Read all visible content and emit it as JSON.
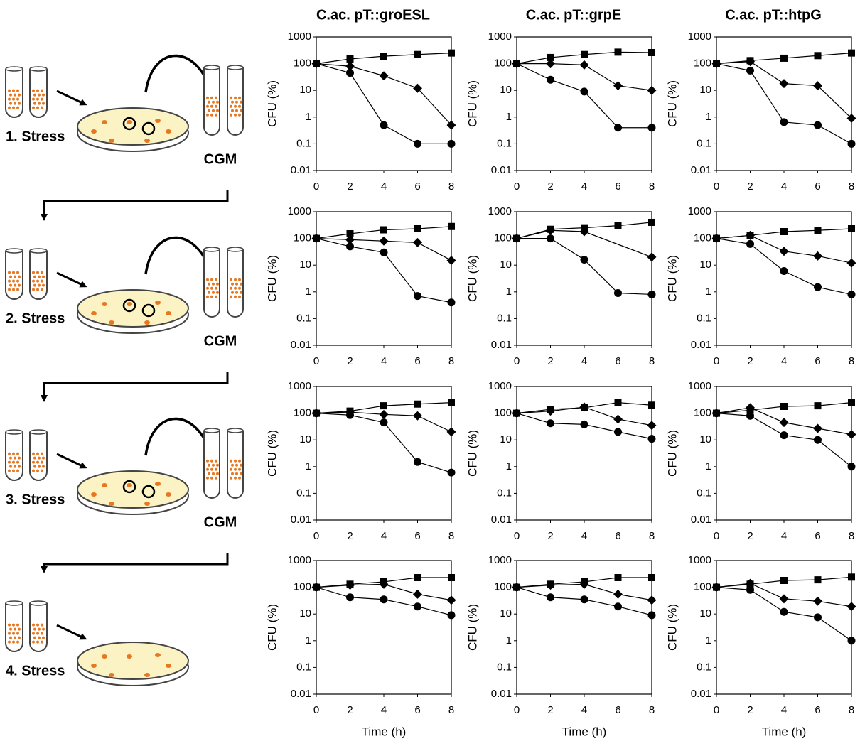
{
  "diagram": {
    "steps": [
      "1. Stress",
      "2. Stress",
      "3. Stress",
      "4. Stress"
    ],
    "medium": [
      "CGM",
      "CGM",
      "CGM"
    ]
  },
  "chart_data": [
    {
      "type": "line",
      "title": "C.ac. pT::groESL",
      "ylabel": "CFU (%)",
      "x": [
        0,
        2,
        4,
        6,
        8
      ],
      "xlim": [
        0,
        8
      ],
      "xticks": [
        0,
        2,
        4,
        6,
        8
      ],
      "ylim": [
        0.01,
        1000
      ],
      "yticks": [
        0.01,
        0.1,
        1,
        10,
        100,
        1000
      ],
      "log_y": true,
      "series": [
        {
          "marker": "square",
          "color": "#000000",
          "values": [
            100,
            150,
            190,
            220,
            250
          ]
        },
        {
          "marker": "diamond",
          "color": "#000000",
          "values": [
            100,
            80,
            35,
            12,
            0.5
          ]
        },
        {
          "marker": "circle",
          "color": "#000000",
          "values": [
            100,
            45,
            0.5,
            0.1,
            0.1
          ]
        }
      ]
    },
    {
      "type": "line",
      "title": "C.ac. pT::grpE",
      "ylabel": "CFU (%)",
      "x": [
        0,
        2,
        4,
        6,
        8
      ],
      "xlim": [
        0,
        8
      ],
      "xticks": [
        0,
        2,
        4,
        6,
        8
      ],
      "ylim": [
        0.01,
        1000
      ],
      "yticks": [
        0.01,
        0.1,
        1,
        10,
        100,
        1000
      ],
      "log_y": true,
      "series": [
        {
          "marker": "square",
          "color": "#000000",
          "values": [
            100,
            170,
            220,
            270,
            260
          ]
        },
        {
          "marker": "diamond",
          "color": "#000000",
          "values": [
            100,
            100,
            90,
            15,
            10
          ]
        },
        {
          "marker": "circle",
          "color": "#000000",
          "values": [
            100,
            25,
            9,
            0.4,
            0.4
          ]
        }
      ]
    },
    {
      "type": "line",
      "title": "C.ac. pT::htpG",
      "ylabel": "CFU (%)",
      "x": [
        0,
        2,
        4,
        6,
        8
      ],
      "xlim": [
        0,
        8
      ],
      "xticks": [
        0,
        2,
        4,
        6,
        8
      ],
      "ylim": [
        0.01,
        1000
      ],
      "yticks": [
        0.01,
        0.1,
        1,
        10,
        100,
        1000
      ],
      "log_y": true,
      "series": [
        {
          "marker": "square",
          "color": "#000000",
          "values": [
            100,
            130,
            160,
            200,
            250
          ]
        },
        {
          "marker": "diamond",
          "color": "#000000",
          "values": [
            100,
            120,
            18,
            15,
            0.9
          ]
        },
        {
          "marker": "circle",
          "color": "#000000",
          "values": [
            100,
            55,
            0.65,
            0.5,
            0.1
          ]
        }
      ]
    },
    {
      "type": "line",
      "ylabel": "CFU (%)",
      "x": [
        0,
        2,
        4,
        6,
        8
      ],
      "xlim": [
        0,
        8
      ],
      "xticks": [
        0,
        2,
        4,
        6,
        8
      ],
      "ylim": [
        0.01,
        1000
      ],
      "yticks": [
        0.01,
        0.1,
        1,
        10,
        100,
        1000
      ],
      "log_y": true,
      "series": [
        {
          "marker": "square",
          "color": "#000000",
          "values": [
            100,
            150,
            210,
            230,
            280
          ]
        },
        {
          "marker": "diamond",
          "color": "#000000",
          "values": [
            100,
            90,
            80,
            70,
            15
          ]
        },
        {
          "marker": "circle",
          "color": "#000000",
          "values": [
            100,
            50,
            30,
            0.7,
            0.4
          ]
        }
      ]
    },
    {
      "type": "line",
      "ylabel": "CFU (%)",
      "x": [
        0,
        2,
        4,
        6,
        8
      ],
      "xlim": [
        0,
        8
      ],
      "xticks": [
        0,
        2,
        4,
        6,
        8
      ],
      "ylim": [
        0.01,
        1000
      ],
      "yticks": [
        0.01,
        0.1,
        1,
        10,
        100,
        1000
      ],
      "log_y": true,
      "series": [
        {
          "marker": "square",
          "color": "#000000",
          "values": [
            100,
            220,
            250,
            300,
            400
          ]
        },
        {
          "marker": "diamond",
          "color": "#000000",
          "x": [
            0,
            2,
            4,
            8
          ],
          "values": [
            100,
            200,
            180,
            20
          ]
        },
        {
          "marker": "circle",
          "color": "#000000",
          "values": [
            100,
            100,
            16,
            0.9,
            0.8
          ]
        }
      ]
    },
    {
      "type": "line",
      "ylabel": "CFU (%)",
      "x": [
        0,
        2,
        4,
        6,
        8
      ],
      "xlim": [
        0,
        8
      ],
      "xticks": [
        0,
        2,
        4,
        6,
        8
      ],
      "ylim": [
        0.01,
        1000
      ],
      "yticks": [
        0.01,
        0.1,
        1,
        10,
        100,
        1000
      ],
      "log_y": true,
      "series": [
        {
          "marker": "square",
          "color": "#000000",
          "values": [
            100,
            130,
            180,
            200,
            230
          ]
        },
        {
          "marker": "diamond",
          "color": "#000000",
          "values": [
            100,
            130,
            33,
            22,
            12
          ]
        },
        {
          "marker": "circle",
          "color": "#000000",
          "values": [
            100,
            62,
            6,
            1.5,
            0.8
          ]
        }
      ]
    },
    {
      "type": "line",
      "ylabel": "CFU (%)",
      "x": [
        0,
        2,
        4,
        6,
        8
      ],
      "xlim": [
        0,
        8
      ],
      "xticks": [
        0,
        2,
        4,
        6,
        8
      ],
      "ylim": [
        0.01,
        1000
      ],
      "yticks": [
        0.01,
        0.1,
        1,
        10,
        100,
        1000
      ],
      "log_y": true,
      "series": [
        {
          "marker": "square",
          "color": "#000000",
          "values": [
            100,
            120,
            190,
            220,
            250
          ]
        },
        {
          "marker": "diamond",
          "color": "#000000",
          "values": [
            100,
            110,
            90,
            80,
            20
          ]
        },
        {
          "marker": "circle",
          "color": "#000000",
          "values": [
            100,
            85,
            45,
            1.5,
            0.6
          ]
        }
      ]
    },
    {
      "type": "line",
      "ylabel": "CFU (%)",
      "x": [
        0,
        2,
        4,
        6,
        8
      ],
      "xlim": [
        0,
        8
      ],
      "xticks": [
        0,
        2,
        4,
        6,
        8
      ],
      "ylim": [
        0.01,
        1000
      ],
      "yticks": [
        0.01,
        0.1,
        1,
        10,
        100,
        1000
      ],
      "log_y": true,
      "series": [
        {
          "marker": "square",
          "color": "#000000",
          "values": [
            100,
            140,
            160,
            250,
            200
          ]
        },
        {
          "marker": "diamond",
          "color": "#000000",
          "values": [
            100,
            120,
            170,
            60,
            35
          ]
        },
        {
          "marker": "circle",
          "color": "#000000",
          "values": [
            100,
            42,
            38,
            20,
            11
          ]
        }
      ]
    },
    {
      "type": "line",
      "ylabel": "CFU (%)",
      "x": [
        0,
        2,
        4,
        6,
        8
      ],
      "xlim": [
        0,
        8
      ],
      "xticks": [
        0,
        2,
        4,
        6,
        8
      ],
      "ylim": [
        0.01,
        1000
      ],
      "yticks": [
        0.01,
        0.1,
        1,
        10,
        100,
        1000
      ],
      "log_y": true,
      "series": [
        {
          "marker": "square",
          "color": "#000000",
          "values": [
            100,
            130,
            180,
            190,
            250
          ]
        },
        {
          "marker": "diamond",
          "color": "#000000",
          "values": [
            100,
            160,
            45,
            27,
            16
          ]
        },
        {
          "marker": "circle",
          "color": "#000000",
          "values": [
            100,
            80,
            15,
            10,
            1
          ]
        }
      ]
    },
    {
      "type": "line",
      "ylabel": "CFU (%)",
      "xlabel": "Time (h)",
      "x": [
        0,
        2,
        4,
        6,
        8
      ],
      "xlim": [
        0,
        8
      ],
      "xticks": [
        0,
        2,
        4,
        6,
        8
      ],
      "ylim": [
        0.01,
        1000
      ],
      "yticks": [
        0.01,
        0.1,
        1,
        10,
        100,
        1000
      ],
      "log_y": true,
      "series": [
        {
          "marker": "square",
          "color": "#000000",
          "values": [
            100,
            130,
            160,
            230,
            230
          ]
        },
        {
          "marker": "diamond",
          "color": "#000000",
          "values": [
            100,
            120,
            130,
            55,
            33
          ]
        },
        {
          "marker": "circle",
          "color": "#000000",
          "values": [
            100,
            42,
            35,
            19,
            9
          ]
        }
      ]
    },
    {
      "type": "line",
      "ylabel": "CFU (%)",
      "xlabel": "Time (h)",
      "x": [
        0,
        2,
        4,
        6,
        8
      ],
      "xlim": [
        0,
        8
      ],
      "xticks": [
        0,
        2,
        4,
        6,
        8
      ],
      "ylim": [
        0.01,
        1000
      ],
      "yticks": [
        0.01,
        0.1,
        1,
        10,
        100,
        1000
      ],
      "log_y": true,
      "series": [
        {
          "marker": "square",
          "color": "#000000",
          "values": [
            100,
            130,
            160,
            230,
            230
          ]
        },
        {
          "marker": "diamond",
          "color": "#000000",
          "values": [
            100,
            120,
            130,
            55,
            33
          ]
        },
        {
          "marker": "circle",
          "color": "#000000",
          "values": [
            100,
            42,
            35,
            19,
            9
          ]
        }
      ]
    },
    {
      "type": "line",
      "ylabel": "CFU (%)",
      "xlabel": "Time (h)",
      "x": [
        0,
        2,
        4,
        6,
        8
      ],
      "xlim": [
        0,
        8
      ],
      "xticks": [
        0,
        2,
        4,
        6,
        8
      ],
      "ylim": [
        0.01,
        1000
      ],
      "yticks": [
        0.01,
        0.1,
        1,
        10,
        100,
        1000
      ],
      "log_y": true,
      "series": [
        {
          "marker": "square",
          "color": "#000000",
          "values": [
            100,
            130,
            180,
            190,
            240
          ]
        },
        {
          "marker": "diamond",
          "color": "#000000",
          "values": [
            100,
            140,
            37,
            30,
            19
          ]
        },
        {
          "marker": "circle",
          "color": "#000000",
          "values": [
            100,
            80,
            12,
            7.5,
            1
          ]
        }
      ]
    }
  ]
}
